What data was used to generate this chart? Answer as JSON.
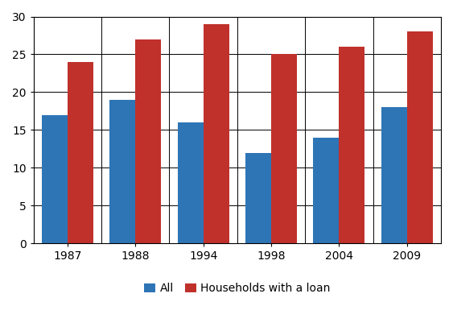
{
  "categories": [
    "1987",
    "1988",
    "1994",
    "1998",
    "2004",
    "2009"
  ],
  "all_values": [
    17,
    19,
    16,
    12,
    14,
    18
  ],
  "loan_values": [
    24,
    27,
    29,
    25,
    26,
    28
  ],
  "bar_color_all": "#2E75B6",
  "bar_color_loan": "#C0312B",
  "ylim": [
    0,
    30
  ],
  "yticks": [
    0,
    5,
    10,
    15,
    20,
    25,
    30
  ],
  "legend_labels": [
    "All",
    "Households with a loan"
  ],
  "bar_width": 0.38,
  "grid_color": "#000000",
  "background_color": "#FFFFFF"
}
